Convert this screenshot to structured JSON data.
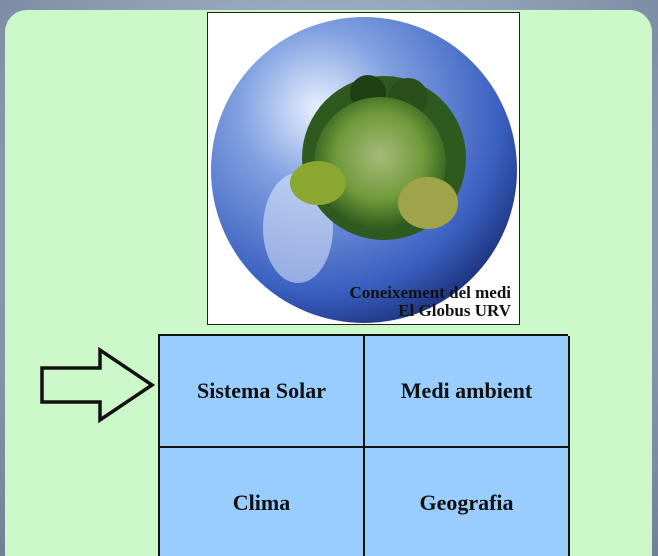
{
  "image": {
    "caption": [
      "Coneixement del medi",
      "El Globus URV"
    ]
  },
  "menu": {
    "rows": [
      [
        "Sistema Solar",
        "Medi ambient"
      ],
      [
        "Clima",
        "Geografia"
      ]
    ]
  }
}
